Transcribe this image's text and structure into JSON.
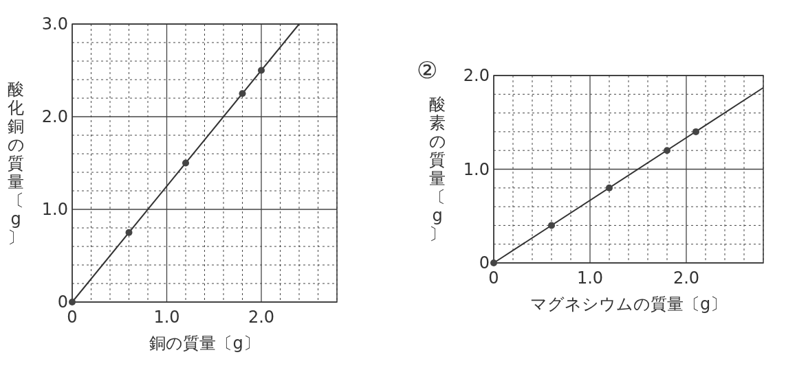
{
  "chart_data": [
    {
      "type": "scatter",
      "xlabel": "銅の質量〔g〕",
      "ylabel": "酸化銅の質量〔g〕",
      "xlim": [
        0,
        2.8
      ],
      "ylim": [
        0,
        3.0
      ],
      "xticks": [
        0,
        {
          "value": 0.2,
          "label": null
        },
        {
          "value": 0.4,
          "label": null
        },
        {
          "value": 0.6,
          "label": null
        },
        {
          "value": 0.8,
          "label": null
        },
        {
          "value": 1.0,
          "label": "1.0"
        },
        {
          "value": 1.2,
          "label": null
        },
        {
          "value": 1.4,
          "label": null
        },
        {
          "value": 1.6,
          "label": null
        },
        {
          "value": 1.8,
          "label": null
        },
        {
          "value": 2.0,
          "label": "2.0"
        },
        {
          "value": 2.2,
          "label": null
        },
        {
          "value": 2.4,
          "label": null
        },
        {
          "value": 2.6,
          "label": null
        },
        {
          "value": 2.8,
          "label": null
        }
      ],
      "yticks": [
        0,
        {
          "value": 0.2,
          "label": null
        },
        {
          "value": 0.4,
          "label": null
        },
        {
          "value": 0.6,
          "label": null
        },
        {
          "value": 0.8,
          "label": null
        },
        {
          "value": 1.0,
          "label": "1.0"
        },
        {
          "value": 1.2,
          "label": null
        },
        {
          "value": 1.4,
          "label": null
        },
        {
          "value": 1.6,
          "label": null
        },
        {
          "value": 1.8,
          "label": null
        },
        {
          "value": 2.0,
          "label": "2.0"
        },
        {
          "value": 2.2,
          "label": null
        },
        {
          "value": 2.4,
          "label": null
        },
        {
          "value": 2.6,
          "label": null
        },
        {
          "value": 2.8,
          "label": null
        },
        {
          "value": 3.0,
          "label": "3.0"
        }
      ],
      "grid": true,
      "series": [
        {
          "type": "line",
          "color": "#333333",
          "x": [
            0,
            2.4
          ],
          "values": [
            0,
            3.0
          ],
          "marker": "none"
        },
        {
          "type": "scatter",
          "color": "#444444",
          "x": [
            0,
            0.6,
            1.2,
            1.8,
            2.0
          ],
          "values": [
            0,
            0.75,
            1.5,
            2.25,
            2.5
          ],
          "marker": "circle"
        }
      ]
    },
    {
      "type": "scatter",
      "xlabel": "マグネシウムの質量〔g〕",
      "ylabel": "酸素の質量〔g〕",
      "annotations": [
        "②"
      ],
      "xlim": [
        0,
        2.8
      ],
      "ylim": [
        0,
        2.0
      ],
      "xticks": [
        0,
        {
          "value": 0.2,
          "label": null
        },
        {
          "value": 0.4,
          "label": null
        },
        {
          "value": 0.6,
          "label": null
        },
        {
          "value": 0.8,
          "label": null
        },
        {
          "value": 1.0,
          "label": "1.0"
        },
        {
          "value": 1.2,
          "label": null
        },
        {
          "value": 1.4,
          "label": null
        },
        {
          "value": 1.6,
          "label": null
        },
        {
          "value": 1.8,
          "label": null
        },
        {
          "value": 2.0,
          "label": "2.0"
        },
        {
          "value": 2.2,
          "label": null
        },
        {
          "value": 2.4,
          "label": null
        },
        {
          "value": 2.6,
          "label": null
        },
        {
          "value": 2.8,
          "label": null
        }
      ],
      "yticks": [
        0,
        {
          "value": 0.2,
          "label": null
        },
        {
          "value": 0.4,
          "label": null
        },
        {
          "value": 0.6,
          "label": null
        },
        {
          "value": 0.8,
          "label": null
        },
        {
          "value": 1.0,
          "label": "1.0"
        },
        {
          "value": 1.2,
          "label": null
        },
        {
          "value": 1.4,
          "label": null
        },
        {
          "value": 1.6,
          "label": null
        },
        {
          "value": 1.8,
          "label": null
        },
        {
          "value": 2.0,
          "label": "2.0"
        }
      ],
      "grid": true,
      "series": [
        {
          "type": "line",
          "color": "#333333",
          "x": [
            0,
            2.8
          ],
          "values": [
            0,
            1.87
          ],
          "marker": "none"
        },
        {
          "type": "scatter",
          "color": "#444444",
          "x": [
            0,
            0.6,
            1.2,
            1.8,
            2.1
          ],
          "values": [
            0,
            0.4,
            0.8,
            1.2,
            1.4
          ],
          "marker": "circle"
        }
      ]
    }
  ]
}
